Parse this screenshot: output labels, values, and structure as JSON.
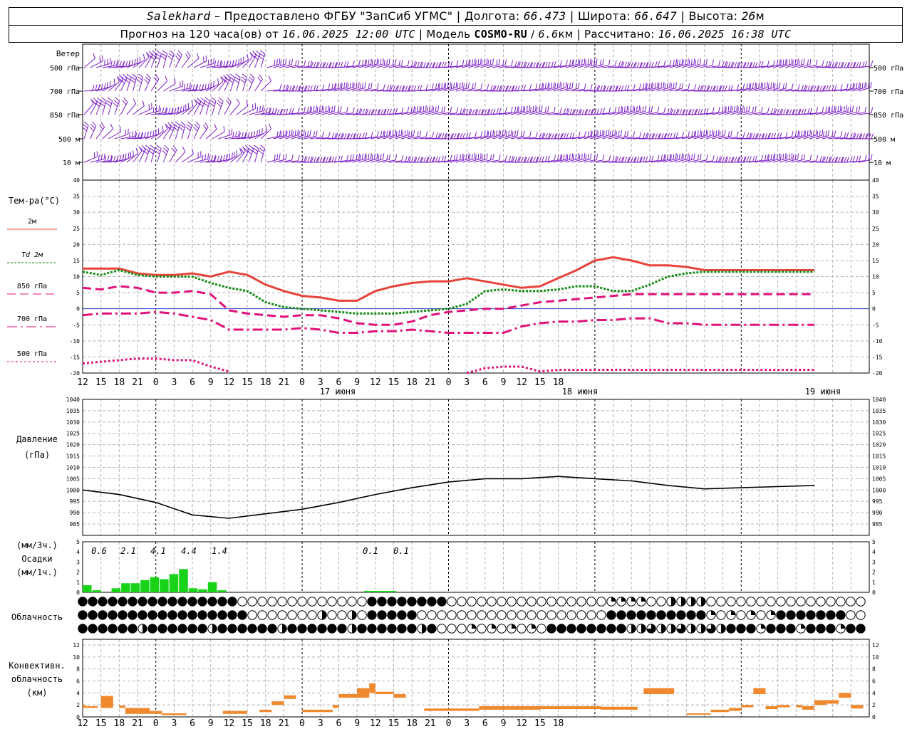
{
  "header": {
    "city": "Salekhard",
    "dash": "–",
    "provider": "Предоставлено ФГБУ \"ЗапСиб УГМС\"",
    "lon_label": "Долгота:",
    "lon_value": "66.473",
    "lat_label": "Широта:",
    "lat_value": "66.647",
    "alt_label": "Высота:",
    "alt_value": "26",
    "alt_unit": "м",
    "forecast_text": "Прогноз на 120 часа(ов) от",
    "forecast_time": "16.06.2025 12:00 UTC",
    "model_label": "Модель",
    "model_name": "COSMO-RU",
    "model_res": "6.6",
    "model_res_unit": "км",
    "calc_label": "Рассчитано:",
    "calc_time": "16.06.2025 16:38 UTC"
  },
  "wind_panel": {
    "title": "Ветер",
    "levels": [
      "500 гПа",
      "700 гПа",
      "850 гПа",
      "500  м",
      "10  м"
    ],
    "barb_color": "#7b1fc4"
  },
  "time_axis": {
    "hour_labels": [
      "12",
      "15",
      "18",
      "21",
      "0",
      "3",
      "6",
      "9",
      "12",
      "15",
      "18",
      "21",
      "0",
      "3",
      "6",
      "9",
      "12",
      "15",
      "18",
      "21",
      "0",
      "3",
      "6",
      "9",
      "12",
      "15",
      "18"
    ],
    "day_labels": [
      "17 июня",
      "18 июня",
      "19 июня"
    ]
  },
  "chart_data": [
    {
      "type": "line",
      "name": "temperature",
      "ylabel": "Тем-ра(°C)",
      "ylim": [
        -20,
        40
      ],
      "yticks": [
        "40",
        "35",
        "30",
        "25",
        "20",
        "15",
        "10",
        "5",
        "0",
        "-5",
        "-10",
        "-15",
        "-20"
      ],
      "grid": true,
      "x_hours_from_start": [
        0,
        3,
        6,
        9,
        12,
        15,
        18,
        21,
        24,
        27,
        30,
        33,
        36,
        39,
        42,
        45,
        48,
        51,
        54,
        57,
        60,
        63,
        66,
        69,
        72,
        75,
        78,
        81,
        84,
        87,
        90,
        93,
        96,
        99,
        102,
        105,
        108,
        111,
        114,
        117,
        120
      ],
      "series": [
        {
          "name": "2м",
          "color": "#e8433a",
          "style": "solid",
          "values": [
            12.5,
            12.5,
            12.5,
            11.0,
            10.5,
            10.5,
            11.0,
            10.0,
            11.5,
            10.5,
            7.5,
            5.5,
            4.0,
            3.5,
            2.5,
            2.5,
            5.5,
            7.0,
            8.0,
            8.5,
            8.5,
            9.5,
            8.5,
            7.5,
            6.5,
            7.0,
            9.5,
            12.0,
            15.0,
            16.0,
            15.0,
            13.5,
            13.5,
            13.0,
            12.0,
            12.0,
            12.0,
            12.0,
            12.0,
            12.0,
            12.0
          ]
        },
        {
          "name": "Td  2м",
          "color": "#138a13",
          "style": "dotted",
          "values": [
            11.5,
            10.5,
            12.0,
            10.5,
            10.0,
            10.0,
            10.0,
            8.0,
            6.5,
            5.5,
            2.0,
            0.5,
            0.0,
            -0.5,
            -1.0,
            -1.5,
            -1.5,
            -1.5,
            -1.0,
            -0.5,
            0.0,
            1.5,
            5.5,
            6.0,
            5.5,
            5.5,
            6.0,
            7.0,
            7.0,
            5.5,
            5.5,
            7.5,
            10.0,
            11.0,
            11.5,
            11.5,
            11.5,
            11.5,
            11.5,
            11.5,
            11.5
          ]
        },
        {
          "name": "850 гПа",
          "color": "#e0127a",
          "style": "dashed",
          "values": [
            6.5,
            6.0,
            7.0,
            6.5,
            5.0,
            5.0,
            5.5,
            4.5,
            -0.5,
            -1.5,
            -2.0,
            -2.5,
            -2.0,
            -2.0,
            -3.0,
            -4.5,
            -5.0,
            -5.0,
            -4.0,
            -2.0,
            -1.0,
            -0.5,
            0.0,
            0.0,
            1.0,
            2.0,
            2.5,
            3.0,
            3.5,
            4.0,
            4.5,
            4.5,
            4.5,
            4.5,
            4.5,
            4.5,
            4.5,
            4.5,
            4.5,
            4.5,
            4.5
          ]
        },
        {
          "name": "700 гПа",
          "color": "#e0127a",
          "style": "dashdot",
          "values": [
            -2.0,
            -1.5,
            -1.5,
            -1.5,
            -1.0,
            -1.5,
            -2.5,
            -3.5,
            -6.5,
            -6.5,
            -6.5,
            -6.5,
            -6.0,
            -6.5,
            -7.5,
            -7.5,
            -7.0,
            -7.0,
            -6.5,
            -7.0,
            -7.5,
            -7.5,
            -7.5,
            -7.5,
            -5.5,
            -4.5,
            -4.0,
            -4.0,
            -3.5,
            -3.5,
            -3.0,
            -3.0,
            -4.5,
            -4.5,
            -5.0,
            -5.0,
            -5.0,
            -5.0,
            -5.0,
            -5.0,
            -5.0
          ]
        },
        {
          "name": "500 гПа",
          "color": "#e0127a",
          "style": "dotted2",
          "values": [
            -17.0,
            -16.5,
            -16.0,
            -15.5,
            -15.5,
            -16.0,
            -16.0,
            -18.0,
            -19.5,
            null,
            null,
            null,
            null,
            null,
            null,
            null,
            null,
            null,
            null,
            null,
            null,
            -20.0,
            -18.5,
            -18.0,
            -18.0,
            -19.5,
            -19.0,
            -19.0,
            -19.0,
            -19.0,
            -19.0,
            -19.0,
            -19.0,
            -19.0,
            -19.0,
            -19.0,
            -19.0,
            -19.0,
            -19.0,
            -19.0,
            -19.0
          ]
        }
      ]
    },
    {
      "type": "line",
      "name": "pressure",
      "ylabel": "Давление",
      "yunit": "(гПа)",
      "ylim": [
        985,
        1040
      ],
      "yticks": [
        "1040",
        "1035",
        "1030",
        "1025",
        "1020",
        "1015",
        "1010",
        "1005",
        "1000",
        "995",
        "990",
        "985"
      ],
      "grid": true,
      "x_hours_from_start": [
        0,
        6,
        12,
        18,
        24,
        30,
        36,
        42,
        48,
        54,
        60,
        66,
        72,
        78,
        84,
        90,
        96,
        102,
        108,
        114,
        120
      ],
      "series": [
        {
          "name": "",
          "color": "#000000",
          "values": [
            1000.0,
            998.0,
            994.5,
            989.0,
            987.5,
            989.5,
            991.5,
            994.5,
            998.0,
            1001.0,
            1003.5,
            1005.0,
            1005.0,
            1006.0,
            1005.0,
            1004.0,
            1002.0,
            1000.5,
            1001.0,
            1001.5,
            1002.0
          ]
        }
      ]
    },
    {
      "type": "bar",
      "name": "precipitation",
      "ylabel": "Осадки",
      "yunit_top": "(мм/3ч.)",
      "yunit_bottom": "(мм/1ч.)",
      "ylim": [
        0,
        5
      ],
      "yticks": [
        "5",
        "4",
        "3",
        "2",
        "1",
        "0"
      ],
      "color": "#18d318",
      "sum_labels": [
        "0.6",
        "2.1",
        "4.1",
        "4.4",
        "1.4",
        "0.1",
        "0.1"
      ],
      "values_hourly": [
        0.7,
        0.2,
        0.0,
        0.4,
        0.9,
        0.9,
        1.2,
        1.5,
        1.3,
        1.8,
        2.3,
        0.4,
        0.3,
        1.0,
        0.2
      ]
    },
    {
      "type": "table",
      "name": "cloudiness",
      "ylabel": "Облачность",
      "rows": [
        "upper",
        "middle",
        "lower"
      ]
    },
    {
      "type": "bar",
      "name": "convective_cloudiness",
      "ylabel_lines": [
        "Конвективн.",
        "облачность",
        "(км)"
      ],
      "ylim": [
        0,
        12
      ],
      "yticks": [
        "12",
        "10",
        "8",
        "6",
        "4",
        "2",
        "0"
      ],
      "color": "#f0892e",
      "segments": [
        {
          "h0": 0,
          "h1": 1,
          "bottom": 1.5,
          "top": 2.0
        },
        {
          "h0": 1,
          "h1": 5,
          "bottom": 1.5,
          "top": 1.8
        },
        {
          "h0": 6,
          "h1": 10,
          "bottom": 1.5,
          "top": 3.5
        },
        {
          "h0": 12,
          "h1": 14,
          "bottom": 1.5,
          "top": 1.9
        },
        {
          "h0": 14,
          "h1": 22,
          "bottom": 0.5,
          "top": 1.5
        },
        {
          "h0": 22,
          "h1": 26,
          "bottom": 0.5,
          "top": 1.0
        },
        {
          "h0": 26,
          "h1": 34,
          "bottom": 0.3,
          "top": 0.6
        },
        {
          "h0": 46,
          "h1": 54,
          "bottom": 0.5,
          "top": 1.0
        },
        {
          "h0": 58,
          "h1": 62,
          "bottom": 0.8,
          "top": 1.2
        },
        {
          "h0": 62,
          "h1": 66,
          "bottom": 2.0,
          "top": 2.6
        },
        {
          "h0": 66,
          "h1": 70,
          "bottom": 3.0,
          "top": 3.6
        },
        {
          "h0": 72,
          "h1": 78,
          "bottom": 0.8,
          "top": 1.2
        },
        {
          "h0": 78,
          "h1": 82,
          "bottom": 0.8,
          "top": 1.2
        },
        {
          "h0": 82,
          "h1": 84,
          "bottom": 1.5,
          "top": 2.0
        },
        {
          "h0": 84,
          "h1": 90,
          "bottom": 3.2,
          "top": 3.8
        },
        {
          "h0": 90,
          "h1": 94,
          "bottom": 3.2,
          "top": 4.8
        },
        {
          "h0": 94,
          "h1": 96,
          "bottom": 4.0,
          "top": 5.6
        },
        {
          "h0": 96,
          "h1": 102,
          "bottom": 3.8,
          "top": 4.2
        },
        {
          "h0": 102,
          "h1": 106,
          "bottom": 3.2,
          "top": 3.8
        },
        {
          "h0": 112,
          "h1": 130,
          "bottom": 1.0,
          "top": 1.4
        },
        {
          "h0": 130,
          "h1": 150,
          "bottom": 1.2,
          "top": 1.8
        },
        {
          "h0": 150,
          "h1": 170,
          "bottom": 1.3,
          "top": 1.8
        },
        {
          "h0": 170,
          "h1": 182,
          "bottom": 1.2,
          "top": 1.7
        },
        {
          "h0": 184,
          "h1": 194,
          "bottom": 3.8,
          "top": 4.8
        },
        {
          "h0": 198,
          "h1": 206,
          "bottom": 0.4,
          "top": 0.6
        },
        {
          "h0": 206,
          "h1": 212,
          "bottom": 0.8,
          "top": 1.2
        },
        {
          "h0": 212,
          "h1": 216,
          "bottom": 1.0,
          "top": 1.5
        },
        {
          "h0": 216,
          "h1": 220,
          "bottom": 1.6,
          "top": 2.0
        },
        {
          "h0": 220,
          "h1": 224,
          "bottom": 3.8,
          "top": 4.8
        },
        {
          "h0": 224,
          "h1": 228,
          "bottom": 1.3,
          "top": 1.8
        },
        {
          "h0": 228,
          "h1": 232,
          "bottom": 1.6,
          "top": 2.0
        },
        {
          "h0": 234,
          "h1": 236,
          "bottom": 1.6,
          "top": 2.0
        },
        {
          "h0": 236,
          "h1": 240,
          "bottom": 1.2,
          "top": 1.8
        },
        {
          "h0": 240,
          "h1": 244,
          "bottom": 2.0,
          "top": 2.8
        },
        {
          "h0": 244,
          "h1": 248,
          "bottom": 2.2,
          "top": 2.8
        },
        {
          "h0": 248,
          "h1": 252,
          "bottom": 3.2,
          "top": 4.0
        },
        {
          "h0": 252,
          "h1": 256,
          "bottom": 1.4,
          "top": 2.0
        }
      ]
    }
  ]
}
